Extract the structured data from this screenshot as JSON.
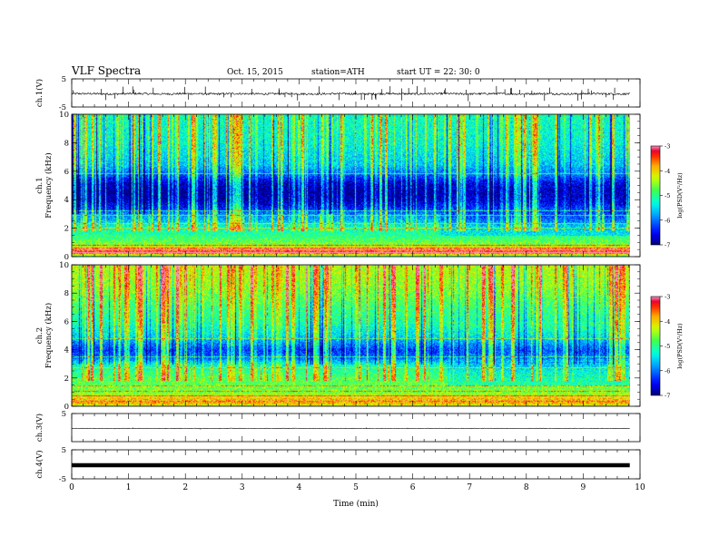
{
  "header": {
    "title": "VLF  Spectra",
    "date": "Oct. 15, 2015",
    "station": "station=ATH",
    "start": "start  UT =   22: 30: 0"
  },
  "chart_data": {
    "type": "heatmap",
    "time_unit": "min",
    "x_range": [
      0,
      10
    ],
    "data_end_min": 9.82,
    "xlabel": "Time  (min)",
    "xticks": [
      "0",
      "1",
      "2",
      "3",
      "4",
      "5",
      "6",
      "7",
      "8",
      "9",
      "10"
    ],
    "panels": [
      {
        "type": "line",
        "ylabel": "ch.1(V)",
        "ylim": [
          -5,
          5
        ],
        "yticks": [
          "5",
          "-5"
        ],
        "baseline_v": -0.3,
        "noise_v": 0.35,
        "spike_count": 55,
        "spike_amp_v": 2.8
      },
      {
        "type": "heatmap",
        "ylabel": "ch.1\nFrequency  (kHz)",
        "ylim": [
          0,
          10
        ],
        "yticks": [
          "0",
          "2",
          "4",
          "6",
          "8",
          "10"
        ],
        "colorbar": {
          "label": "log(PSD(V²/Hz)",
          "range": [
            -7,
            -3
          ],
          "ticks": [
            "-3",
            "-4",
            "-5",
            "-6",
            "-7"
          ]
        },
        "profile": {
          "freq_khz": [
            0.0,
            0.3,
            0.5,
            0.9,
            1.5,
            2.2,
            2.6,
            3.0,
            3.4,
            4.0,
            4.6,
            5.2,
            5.8,
            6.5,
            8.0,
            10.0
          ],
          "log_psd": [
            -5.2,
            -3.4,
            -3.6,
            -4.6,
            -5.0,
            -5.3,
            -5.7,
            -5.9,
            -6.4,
            -6.8,
            -6.9,
            -6.7,
            -6.1,
            -5.6,
            -5.3,
            -5.2
          ]
        },
        "hlines_khz": [
          0.35,
          0.5,
          0.65,
          0.8,
          2.05,
          2.35,
          2.9,
          3.25,
          5.85
        ],
        "transition_min": 6.5,
        "spike_count": 150
      },
      {
        "type": "heatmap",
        "ylabel": "ch.2\nFrequency  (kHz)",
        "ylim": [
          0,
          10
        ],
        "yticks": [
          "0",
          "2",
          "4",
          "6",
          "8",
          "10"
        ],
        "colorbar": {
          "label": "log(PSD(V²/Hz)",
          "range": [
            -7,
            -3
          ],
          "ticks": [
            "-3",
            "-4",
            "-5",
            "-6",
            "-7"
          ]
        },
        "profile": {
          "freq_khz": [
            0.0,
            0.3,
            0.6,
            1.0,
            1.5,
            2.0,
            2.5,
            3.0,
            3.4,
            4.0,
            4.5,
            5.0,
            6.0,
            7.0,
            8.5,
            10.0
          ],
          "log_psd": [
            -4.4,
            -3.8,
            -4.0,
            -4.6,
            -4.7,
            -4.8,
            -5.0,
            -5.3,
            -6.0,
            -6.3,
            -5.9,
            -5.5,
            -5.1,
            -4.9,
            -4.5,
            -4.3
          ]
        },
        "hlines_khz": [
          0.4,
          0.75,
          1.1,
          1.45,
          2.75,
          3.5,
          4.8
        ],
        "transition_min": 6.6,
        "spike_count": 140
      },
      {
        "type": "line",
        "ylabel": "ch.3(V)",
        "ylim": [
          -5,
          5
        ],
        "yticks": [
          "5"
        ],
        "baseline_v": -0.3,
        "noise_v": 0.08,
        "spike_count": 6,
        "spike_amp_v": 0.4
      },
      {
        "type": "line",
        "ylabel": "ch.4(V)",
        "ylim": [
          -5,
          5
        ],
        "yticks": [
          "5",
          "-5"
        ],
        "baseline_v": -0.3,
        "noise_v": 0.0,
        "thick": true,
        "spike_count": 0,
        "spike_amp_v": 0
      }
    ]
  }
}
